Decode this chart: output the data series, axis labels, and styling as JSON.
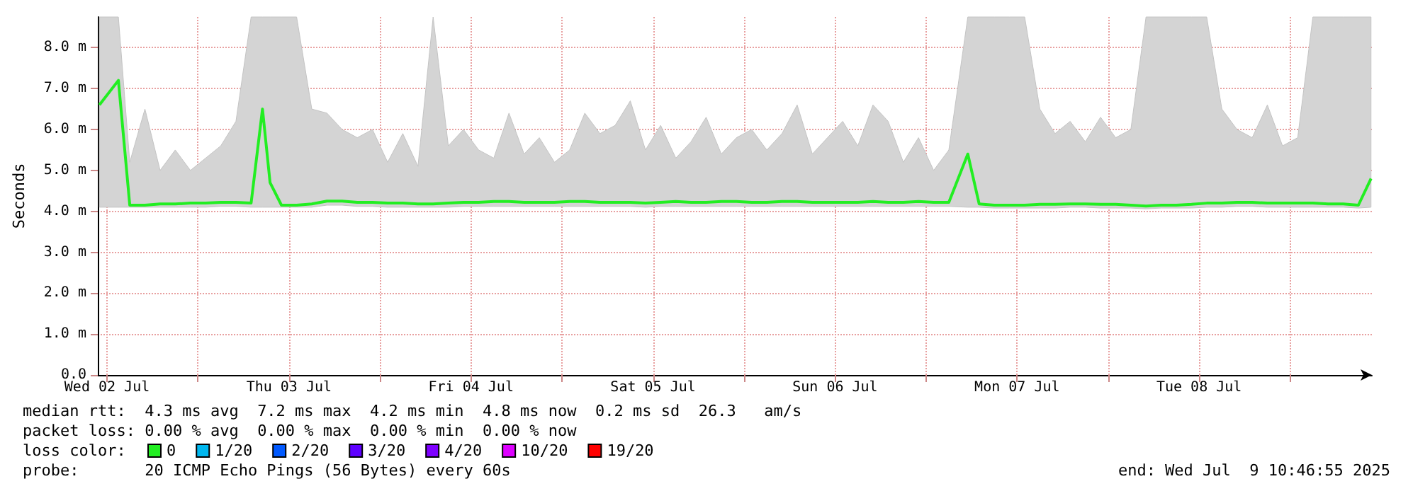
{
  "chart_data": {
    "type": "line",
    "ylabel": "Seconds",
    "x": [
      "2025-07-02T11:00",
      "2025-07-02T13:30",
      "2025-07-02T15:00",
      "2025-07-02T17:00",
      "2025-07-02T19:00",
      "2025-07-02T21:00",
      "2025-07-02T23:00",
      "2025-07-03T01:00",
      "2025-07-03T03:00",
      "2025-07-03T05:00",
      "2025-07-03T07:00",
      "2025-07-03T08:30",
      "2025-07-03T09:30",
      "2025-07-03T11:00",
      "2025-07-03T13:00",
      "2025-07-03T15:00",
      "2025-07-03T17:00",
      "2025-07-03T19:00",
      "2025-07-03T21:00",
      "2025-07-03T23:00",
      "2025-07-04T01:00",
      "2025-07-04T03:00",
      "2025-07-04T05:00",
      "2025-07-04T07:00",
      "2025-07-04T09:00",
      "2025-07-04T11:00",
      "2025-07-04T13:00",
      "2025-07-04T15:00",
      "2025-07-04T17:00",
      "2025-07-04T19:00",
      "2025-07-04T21:00",
      "2025-07-04T23:00",
      "2025-07-05T01:00",
      "2025-07-05T03:00",
      "2025-07-05T05:00",
      "2025-07-05T07:00",
      "2025-07-05T09:00",
      "2025-07-05T11:00",
      "2025-07-05T13:00",
      "2025-07-05T15:00",
      "2025-07-05T17:00",
      "2025-07-05T19:00",
      "2025-07-05T21:00",
      "2025-07-05T23:00",
      "2025-07-06T01:00",
      "2025-07-06T03:00",
      "2025-07-06T05:00",
      "2025-07-06T07:00",
      "2025-07-06T09:00",
      "2025-07-06T11:00",
      "2025-07-06T13:00",
      "2025-07-06T15:00",
      "2025-07-06T17:00",
      "2025-07-06T19:00",
      "2025-07-06T21:00",
      "2025-07-06T23:00",
      "2025-07-07T01:00",
      "2025-07-07T03:00",
      "2025-07-07T05:30",
      "2025-07-07T07:00",
      "2025-07-07T09:00",
      "2025-07-07T11:00",
      "2025-07-07T13:00",
      "2025-07-07T15:00",
      "2025-07-07T17:00",
      "2025-07-07T19:00",
      "2025-07-07T21:00",
      "2025-07-07T23:00",
      "2025-07-08T01:00",
      "2025-07-08T03:00",
      "2025-07-08T05:00",
      "2025-07-08T07:00",
      "2025-07-08T09:00",
      "2025-07-08T11:00",
      "2025-07-08T13:00",
      "2025-07-08T15:00",
      "2025-07-08T17:00",
      "2025-07-08T19:00",
      "2025-07-08T21:00",
      "2025-07-08T23:00",
      "2025-07-09T01:00",
      "2025-07-09T03:00",
      "2025-07-09T05:00",
      "2025-07-09T07:00",
      "2025-07-09T09:00",
      "2025-07-09T10:40"
    ],
    "xlim": [
      "2025-07-02T10:47",
      "2025-07-09T10:47"
    ],
    "xticks": [
      {
        "value": "2025-07-02T12:00",
        "label": "Wed 02 Jul"
      },
      {
        "value": "2025-07-03T00:00",
        "label": null
      },
      {
        "value": "2025-07-03T12:00",
        "label": "Thu 03 Jul"
      },
      {
        "value": "2025-07-04T00:00",
        "label": null
      },
      {
        "value": "2025-07-04T12:00",
        "label": "Fri 04 Jul"
      },
      {
        "value": "2025-07-05T00:00",
        "label": null
      },
      {
        "value": "2025-07-05T12:00",
        "label": "Sat 05 Jul"
      },
      {
        "value": "2025-07-06T00:00",
        "label": null
      },
      {
        "value": "2025-07-06T12:00",
        "label": "Sun 06 Jul"
      },
      {
        "value": "2025-07-07T00:00",
        "label": null
      },
      {
        "value": "2025-07-07T12:00",
        "label": "Mon 07 Jul"
      },
      {
        "value": "2025-07-08T00:00",
        "label": null
      },
      {
        "value": "2025-07-08T12:00",
        "label": "Tue 08 Jul"
      },
      {
        "value": "2025-07-09T00:00",
        "label": null
      }
    ],
    "ylim": [
      0,
      8.75
    ],
    "yticks": [
      {
        "value": 0,
        "label": "0.0"
      },
      {
        "value": 1,
        "label": "1.0 m"
      },
      {
        "value": 2,
        "label": "2.0 m"
      },
      {
        "value": 3,
        "label": "3.0 m"
      },
      {
        "value": 4,
        "label": "4.0 m"
      },
      {
        "value": 5,
        "label": "5.0 m"
      },
      {
        "value": 6,
        "label": "6.0 m"
      },
      {
        "value": 7,
        "label": "7.0 m"
      },
      {
        "value": 8,
        "label": "8.0 m"
      }
    ],
    "grid": true,
    "legend": "bottom",
    "legend_title": "loss color:",
    "series": [
      {
        "name": "0",
        "color": "#22ee22",
        "values": [
          6.6,
          7.2,
          4.15,
          4.15,
          4.18,
          4.18,
          4.2,
          4.2,
          4.22,
          4.22,
          4.2,
          6.5,
          4.7,
          4.15,
          4.15,
          4.18,
          4.25,
          4.25,
          4.22,
          4.22,
          4.2,
          4.2,
          4.18,
          4.18,
          4.2,
          4.22,
          4.22,
          4.24,
          4.24,
          4.22,
          4.22,
          4.22,
          4.24,
          4.24,
          4.22,
          4.22,
          4.22,
          4.2,
          4.22,
          4.24,
          4.22,
          4.22,
          4.24,
          4.24,
          4.22,
          4.22,
          4.24,
          4.24,
          4.22,
          4.22,
          4.22,
          4.22,
          4.24,
          4.22,
          4.22,
          4.24,
          4.22,
          4.22,
          5.4,
          4.18,
          4.15,
          4.15,
          4.15,
          4.17,
          4.17,
          4.18,
          4.18,
          4.17,
          4.17,
          4.15,
          4.13,
          4.15,
          4.15,
          4.17,
          4.2,
          4.2,
          4.22,
          4.22,
          4.2,
          4.2,
          4.2,
          4.2,
          4.18,
          4.18,
          4.15,
          4.8
        ],
        "lower": [
          4.1,
          4.1,
          4.1,
          4.1,
          4.1,
          4.1,
          4.1,
          4.1,
          4.12,
          4.12,
          4.1,
          4.1,
          4.1,
          4.1,
          4.1,
          4.1,
          4.15,
          4.15,
          4.12,
          4.12,
          4.1,
          4.1,
          4.1,
          4.1,
          4.1,
          4.12,
          4.12,
          4.12,
          4.12,
          4.12,
          4.12,
          4.12,
          4.12,
          4.12,
          4.12,
          4.12,
          4.12,
          4.1,
          4.12,
          4.12,
          4.12,
          4.12,
          4.12,
          4.12,
          4.12,
          4.12,
          4.12,
          4.12,
          4.12,
          4.12,
          4.12,
          4.12,
          4.12,
          4.12,
          4.12,
          4.12,
          4.12,
          4.12,
          4.1,
          4.1,
          4.08,
          4.08,
          4.08,
          4.08,
          4.08,
          4.1,
          4.1,
          4.08,
          4.08,
          4.08,
          4.06,
          4.08,
          4.08,
          4.08,
          4.1,
          4.1,
          4.12,
          4.12,
          4.1,
          4.1,
          4.1,
          4.1,
          4.1,
          4.1,
          4.08,
          4.1
        ],
        "upper": [
          8.75,
          8.75,
          5.2,
          6.5,
          5.0,
          5.5,
          5.0,
          5.3,
          5.6,
          6.2,
          8.75,
          8.75,
          8.75,
          8.75,
          8.75,
          6.5,
          6.4,
          6.0,
          5.8,
          6.0,
          5.2,
          5.9,
          5.1,
          8.75,
          5.6,
          6.0,
          5.5,
          5.3,
          6.4,
          5.4,
          5.8,
          5.2,
          5.5,
          6.4,
          5.9,
          6.1,
          6.7,
          5.5,
          6.1,
          5.3,
          5.7,
          6.3,
          5.4,
          5.8,
          6.0,
          5.5,
          5.9,
          6.6,
          5.4,
          5.8,
          6.2,
          5.6,
          6.6,
          6.2,
          5.2,
          5.8,
          5.0,
          5.5,
          8.75,
          8.75,
          8.75,
          8.75,
          8.75,
          6.5,
          5.9,
          6.2,
          5.7,
          6.3,
          5.8,
          6.0,
          8.75,
          8.75,
          8.75,
          8.75,
          8.75,
          6.5,
          6.0,
          5.8,
          6.6,
          5.6,
          5.8,
          8.75,
          8.75,
          8.75,
          8.75,
          8.75
        ]
      },
      {
        "name": "1/20",
        "color": "#00b7ef",
        "values": [
          null,
          null,
          null,
          null,
          null,
          null,
          null,
          null,
          null,
          null,
          null,
          null,
          null,
          null,
          null,
          null,
          null,
          null,
          null,
          null,
          null,
          null,
          null,
          null,
          null,
          null,
          null,
          null,
          null,
          null,
          null,
          null,
          null,
          null,
          null,
          null,
          null,
          null,
          null,
          null,
          null,
          null,
          null,
          null,
          null,
          null,
          null,
          null,
          null,
          null,
          null,
          null,
          null,
          null,
          null,
          null,
          null,
          null,
          null,
          null,
          null,
          null,
          null,
          null,
          null,
          null,
          null,
          null,
          null,
          null,
          null,
          null,
          null,
          null,
          null,
          null,
          null,
          null,
          null,
          null,
          null,
          null,
          null,
          null,
          null,
          null
        ]
      },
      {
        "name": "2/20",
        "color": "#0059ff",
        "values": [
          null,
          null,
          null,
          null,
          null,
          null,
          null,
          null,
          null,
          null,
          null,
          null,
          null,
          null,
          null,
          null,
          null,
          null,
          null,
          null,
          null,
          null,
          null,
          null,
          null,
          null,
          null,
          null,
          null,
          null,
          null,
          null,
          null,
          null,
          null,
          null,
          null,
          null,
          null,
          null,
          null,
          null,
          null,
          null,
          null,
          null,
          null,
          null,
          null,
          null,
          null,
          null,
          null,
          null,
          null,
          null,
          null,
          null,
          null,
          null,
          null,
          null,
          null,
          null,
          null,
          null,
          null,
          null,
          null,
          null,
          null,
          null,
          null,
          null,
          null,
          null,
          null,
          null,
          null,
          null,
          null,
          null,
          null,
          null,
          null,
          null
        ]
      },
      {
        "name": "3/20",
        "color": "#5e00ff",
        "values": [
          null,
          null,
          null,
          null,
          null,
          null,
          null,
          null,
          null,
          null,
          null,
          null,
          null,
          null,
          null,
          null,
          null,
          null,
          null,
          null,
          null,
          null,
          null,
          null,
          null,
          null,
          null,
          null,
          null,
          null,
          null,
          null,
          null,
          null,
          null,
          null,
          null,
          null,
          null,
          null,
          null,
          null,
          null,
          null,
          null,
          null,
          null,
          null,
          null,
          null,
          null,
          null,
          null,
          null,
          null,
          null,
          null,
          null,
          null,
          null,
          null,
          null,
          null,
          null,
          null,
          null,
          null,
          null,
          null,
          null,
          null,
          null,
          null,
          null,
          null,
          null,
          null,
          null,
          null,
          null,
          null,
          null,
          null,
          null,
          null,
          null
        ]
      },
      {
        "name": "4/20",
        "color": "#7e00ff",
        "values": [
          null,
          null,
          null,
          null,
          null,
          null,
          null,
          null,
          null,
          null,
          null,
          null,
          null,
          null,
          null,
          null,
          null,
          null,
          null,
          null,
          null,
          null,
          null,
          null,
          null,
          null,
          null,
          null,
          null,
          null,
          null,
          null,
          null,
          null,
          null,
          null,
          null,
          null,
          null,
          null,
          null,
          null,
          null,
          null,
          null,
          null,
          null,
          null,
          null,
          null,
          null,
          null,
          null,
          null,
          null,
          null,
          null,
          null,
          null,
          null,
          null,
          null,
          null,
          null,
          null,
          null,
          null,
          null,
          null,
          null,
          null,
          null,
          null,
          null,
          null,
          null,
          null,
          null,
          null,
          null,
          null,
          null,
          null,
          null,
          null,
          null
        ]
      },
      {
        "name": "10/20",
        "color": "#dd00ff",
        "values": [
          null,
          null,
          null,
          null,
          null,
          null,
          null,
          null,
          null,
          null,
          null,
          null,
          null,
          null,
          null,
          null,
          null,
          null,
          null,
          null,
          null,
          null,
          null,
          null,
          null,
          null,
          null,
          null,
          null,
          null,
          null,
          null,
          null,
          null,
          null,
          null,
          null,
          null,
          null,
          null,
          null,
          null,
          null,
          null,
          null,
          null,
          null,
          null,
          null,
          null,
          null,
          null,
          null,
          null,
          null,
          null,
          null,
          null,
          null,
          null,
          null,
          null,
          null,
          null,
          null,
          null,
          null,
          null,
          null,
          null,
          null,
          null,
          null,
          null,
          null,
          null,
          null,
          null,
          null,
          null,
          null,
          null,
          null,
          null,
          null,
          null
        ]
      },
      {
        "name": "19/20",
        "color": "#ff0000",
        "values": [
          null,
          null,
          null,
          null,
          null,
          null,
          null,
          null,
          null,
          null,
          null,
          null,
          null,
          null,
          null,
          null,
          null,
          null,
          null,
          null,
          null,
          null,
          null,
          null,
          null,
          null,
          null,
          null,
          null,
          null,
          null,
          null,
          null,
          null,
          null,
          null,
          null,
          null,
          null,
          null,
          null,
          null,
          null,
          null,
          null,
          null,
          null,
          null,
          null,
          null,
          null,
          null,
          null,
          null,
          null,
          null,
          null,
          null,
          null,
          null,
          null,
          null,
          null,
          null,
          null,
          null,
          null,
          null,
          null,
          null,
          null,
          null,
          null,
          null,
          null,
          null,
          null,
          null,
          null,
          null,
          null,
          null,
          null,
          null,
          null,
          null
        ]
      }
    ],
    "annotations": [
      "median rtt:  4.3 ms avg  7.2 ms max  4.2 ms min  4.8 ms now  0.2 ms sd  26.3   am/s",
      "packet loss: 0.00 % avg  0.00 % max  0.00 % min  0.00 % now",
      "probe:       20 ICMP Echo Pings (56 Bytes) every 60s",
      "end: Wed Jul  9 10:46:55 2025"
    ]
  }
}
